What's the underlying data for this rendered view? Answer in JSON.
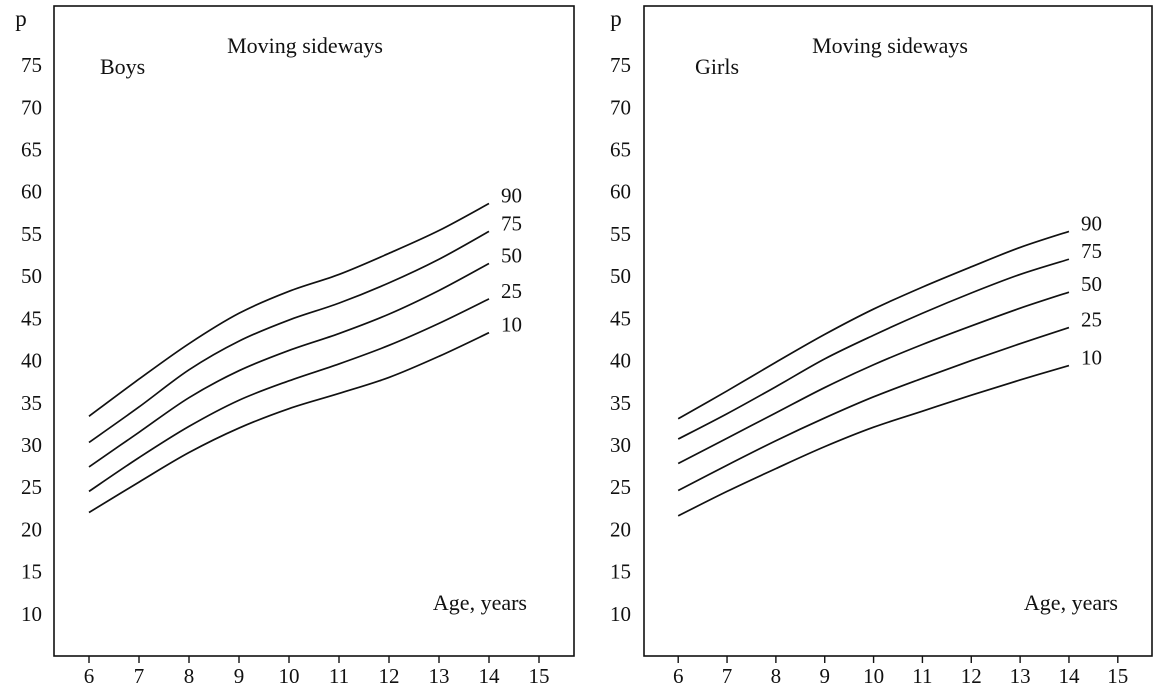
{
  "chart_data": [
    {
      "type": "line",
      "title": "Moving sideways",
      "panel_label": "Boys",
      "ylabel": "p",
      "xlabel": "Age, years",
      "x_ticks": [
        6,
        7,
        8,
        9,
        10,
        11,
        12,
        13,
        14,
        15
      ],
      "y_ticks": [
        10,
        15,
        20,
        25,
        30,
        35,
        40,
        45,
        50,
        55,
        60,
        65,
        70,
        75
      ],
      "xlim": [
        5.3,
        15.7
      ],
      "ylim": [
        5,
        82
      ],
      "grid": false,
      "x": [
        6,
        7,
        8,
        9,
        10,
        11,
        12,
        13,
        14
      ],
      "series": [
        {
          "name": "10",
          "values": [
            22.0,
            25.6,
            29.1,
            32.0,
            34.3,
            36.1,
            38.0,
            40.5,
            43.3
          ]
        },
        {
          "name": "25",
          "values": [
            24.5,
            28.5,
            32.2,
            35.3,
            37.6,
            39.6,
            41.8,
            44.4,
            47.3
          ]
        },
        {
          "name": "50",
          "values": [
            27.4,
            31.5,
            35.6,
            38.8,
            41.2,
            43.2,
            45.5,
            48.3,
            51.5
          ]
        },
        {
          "name": "75",
          "values": [
            30.3,
            34.5,
            38.9,
            42.3,
            44.8,
            46.8,
            49.2,
            52.0,
            55.3
          ]
        },
        {
          "name": "90",
          "values": [
            33.4,
            37.8,
            42.0,
            45.6,
            48.2,
            50.2,
            52.7,
            55.4,
            58.6
          ]
        }
      ]
    },
    {
      "type": "line",
      "title": "Moving sideways",
      "panel_label": "Girls",
      "ylabel": "p",
      "xlabel": "Age, years",
      "x_ticks": [
        6,
        7,
        8,
        9,
        10,
        11,
        12,
        13,
        14,
        15
      ],
      "y_ticks": [
        10,
        15,
        20,
        25,
        30,
        35,
        40,
        45,
        50,
        55,
        60,
        65,
        70,
        75
      ],
      "xlim": [
        5.3,
        15.7
      ],
      "ylim": [
        5,
        82
      ],
      "grid": false,
      "x": [
        6,
        7,
        8,
        9,
        10,
        11,
        12,
        13,
        14
      ],
      "series": [
        {
          "name": "10",
          "values": [
            21.6,
            24.5,
            27.2,
            29.8,
            32.1,
            34.0,
            35.9,
            37.7,
            39.4
          ]
        },
        {
          "name": "25",
          "values": [
            24.6,
            27.6,
            30.5,
            33.2,
            35.7,
            37.9,
            40.0,
            42.0,
            43.9
          ]
        },
        {
          "name": "50",
          "values": [
            27.8,
            30.8,
            33.8,
            36.8,
            39.5,
            41.9,
            44.1,
            46.2,
            48.1
          ]
        },
        {
          "name": "75",
          "values": [
            30.7,
            33.7,
            36.9,
            40.2,
            43.0,
            45.6,
            48.0,
            50.2,
            52.0
          ]
        },
        {
          "name": "90",
          "values": [
            33.1,
            36.4,
            39.8,
            43.1,
            46.1,
            48.7,
            51.1,
            53.4,
            55.3
          ]
        }
      ]
    }
  ]
}
